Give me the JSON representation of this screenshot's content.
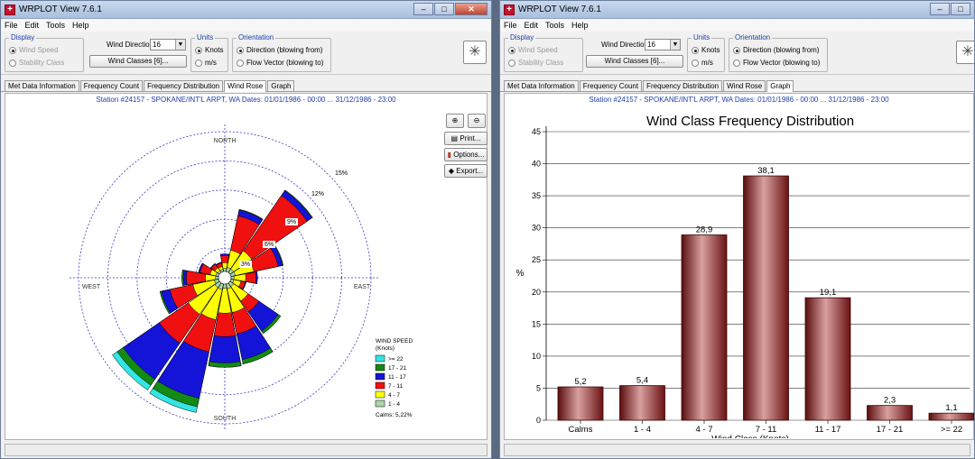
{
  "windows": [
    {
      "title": "WRPLOT View 7.6.1",
      "menu": [
        "File",
        "Edit",
        "Tools",
        "Help"
      ],
      "display": {
        "label": "Display",
        "options": [
          "Wind Speed",
          "Stability Class"
        ]
      },
      "wind_directions_label": "Wind Directions:",
      "wind_directions_value": "16",
      "wind_classes_button": "Wind Classes [6]...",
      "units": {
        "label": "Units",
        "options": [
          "Knots",
          "m/s"
        ]
      },
      "orientation": {
        "label": "Orientation",
        "options": [
          "Direction (blowing from)",
          "Flow Vector (blowing to)"
        ]
      },
      "tabs": [
        "Met Data Information",
        "Frequency Count",
        "Frequency Distribution",
        "Wind Rose",
        "Graph"
      ],
      "active_tab": "Wind Rose",
      "station": "Station #24157 - SPOKANE/INT'L ARPT, WA  Dates: 01/01/1986 - 00:00 ... 31/12/1986 - 23:00"
    },
    {
      "title": "WRPLOT View 7.6.1",
      "menu": [
        "File",
        "Edit",
        "Tools",
        "Help"
      ],
      "display": {
        "label": "Display",
        "options": [
          "Wind Speed",
          "Stability Class"
        ]
      },
      "wind_directions_label": "Wind Directions:",
      "wind_directions_value": "16",
      "wind_classes_button": "Wind Classes [6]...",
      "units": {
        "label": "Units",
        "options": [
          "Knots",
          "m/s"
        ]
      },
      "orientation": {
        "label": "Orientation",
        "options": [
          "Direction (blowing from)",
          "Flow Vector (blowing to)"
        ]
      },
      "tabs": [
        "Met Data Information",
        "Frequency Count",
        "Frequency Distribution",
        "Wind Rose",
        "Graph"
      ],
      "active_tab": "Graph",
      "station": "Station #24157 - SPOKANE/INT'L ARPT, WA  Dates: 01/01/1986 - 00:00 ... 31/12/1986 - 23:00"
    }
  ],
  "rose_tools": {
    "print": "Print...",
    "options": "Options...",
    "export": "Export..."
  },
  "rose": {
    "compass": {
      "north": "NORTH",
      "south": "SOUTH",
      "east": "EAST",
      "west": "WEST"
    },
    "ring_labels": [
      "3%",
      "6%",
      "9%",
      "12%",
      "15%"
    ],
    "legend": {
      "title": "WIND SPEED",
      "units": "(Knots)",
      "classes": [
        {
          "label": ">= 22",
          "color": "#33e5e5"
        },
        {
          "label": "17 - 21",
          "color": "#138a13"
        },
        {
          "label": "11 - 17",
          "color": "#1414d8"
        },
        {
          "label": "7 - 11",
          "color": "#f01010"
        },
        {
          "label": "4 - 7",
          "color": "#ffff00"
        },
        {
          "label": "1 - 4",
          "color": "#a9d5a9"
        }
      ],
      "calms": "Calms: 5,22%"
    }
  },
  "chart_data": {
    "type": "bar",
    "title": "Wind Class Frequency Distribution",
    "xlabel": "Wind Class (Knots)",
    "ylabel": "%",
    "categories": [
      "Calms",
      "1 - 4",
      "4 - 7",
      "7 - 11",
      "11 - 17",
      "17 - 21",
      ">= 22"
    ],
    "values": [
      5.2,
      5.4,
      28.9,
      38.1,
      19.1,
      2.3,
      1.1
    ],
    "value_labels": [
      "5,2",
      "5,4",
      "28,9",
      "38,1",
      "19,1",
      "2,3",
      "1,1"
    ],
    "yticks": [
      "0",
      "5",
      "10",
      "15",
      "20",
      "25",
      "30",
      "35",
      "40",
      "45"
    ],
    "ylim": [
      0,
      45
    ],
    "grid": true,
    "bar_color": "#8b1a1a"
  }
}
